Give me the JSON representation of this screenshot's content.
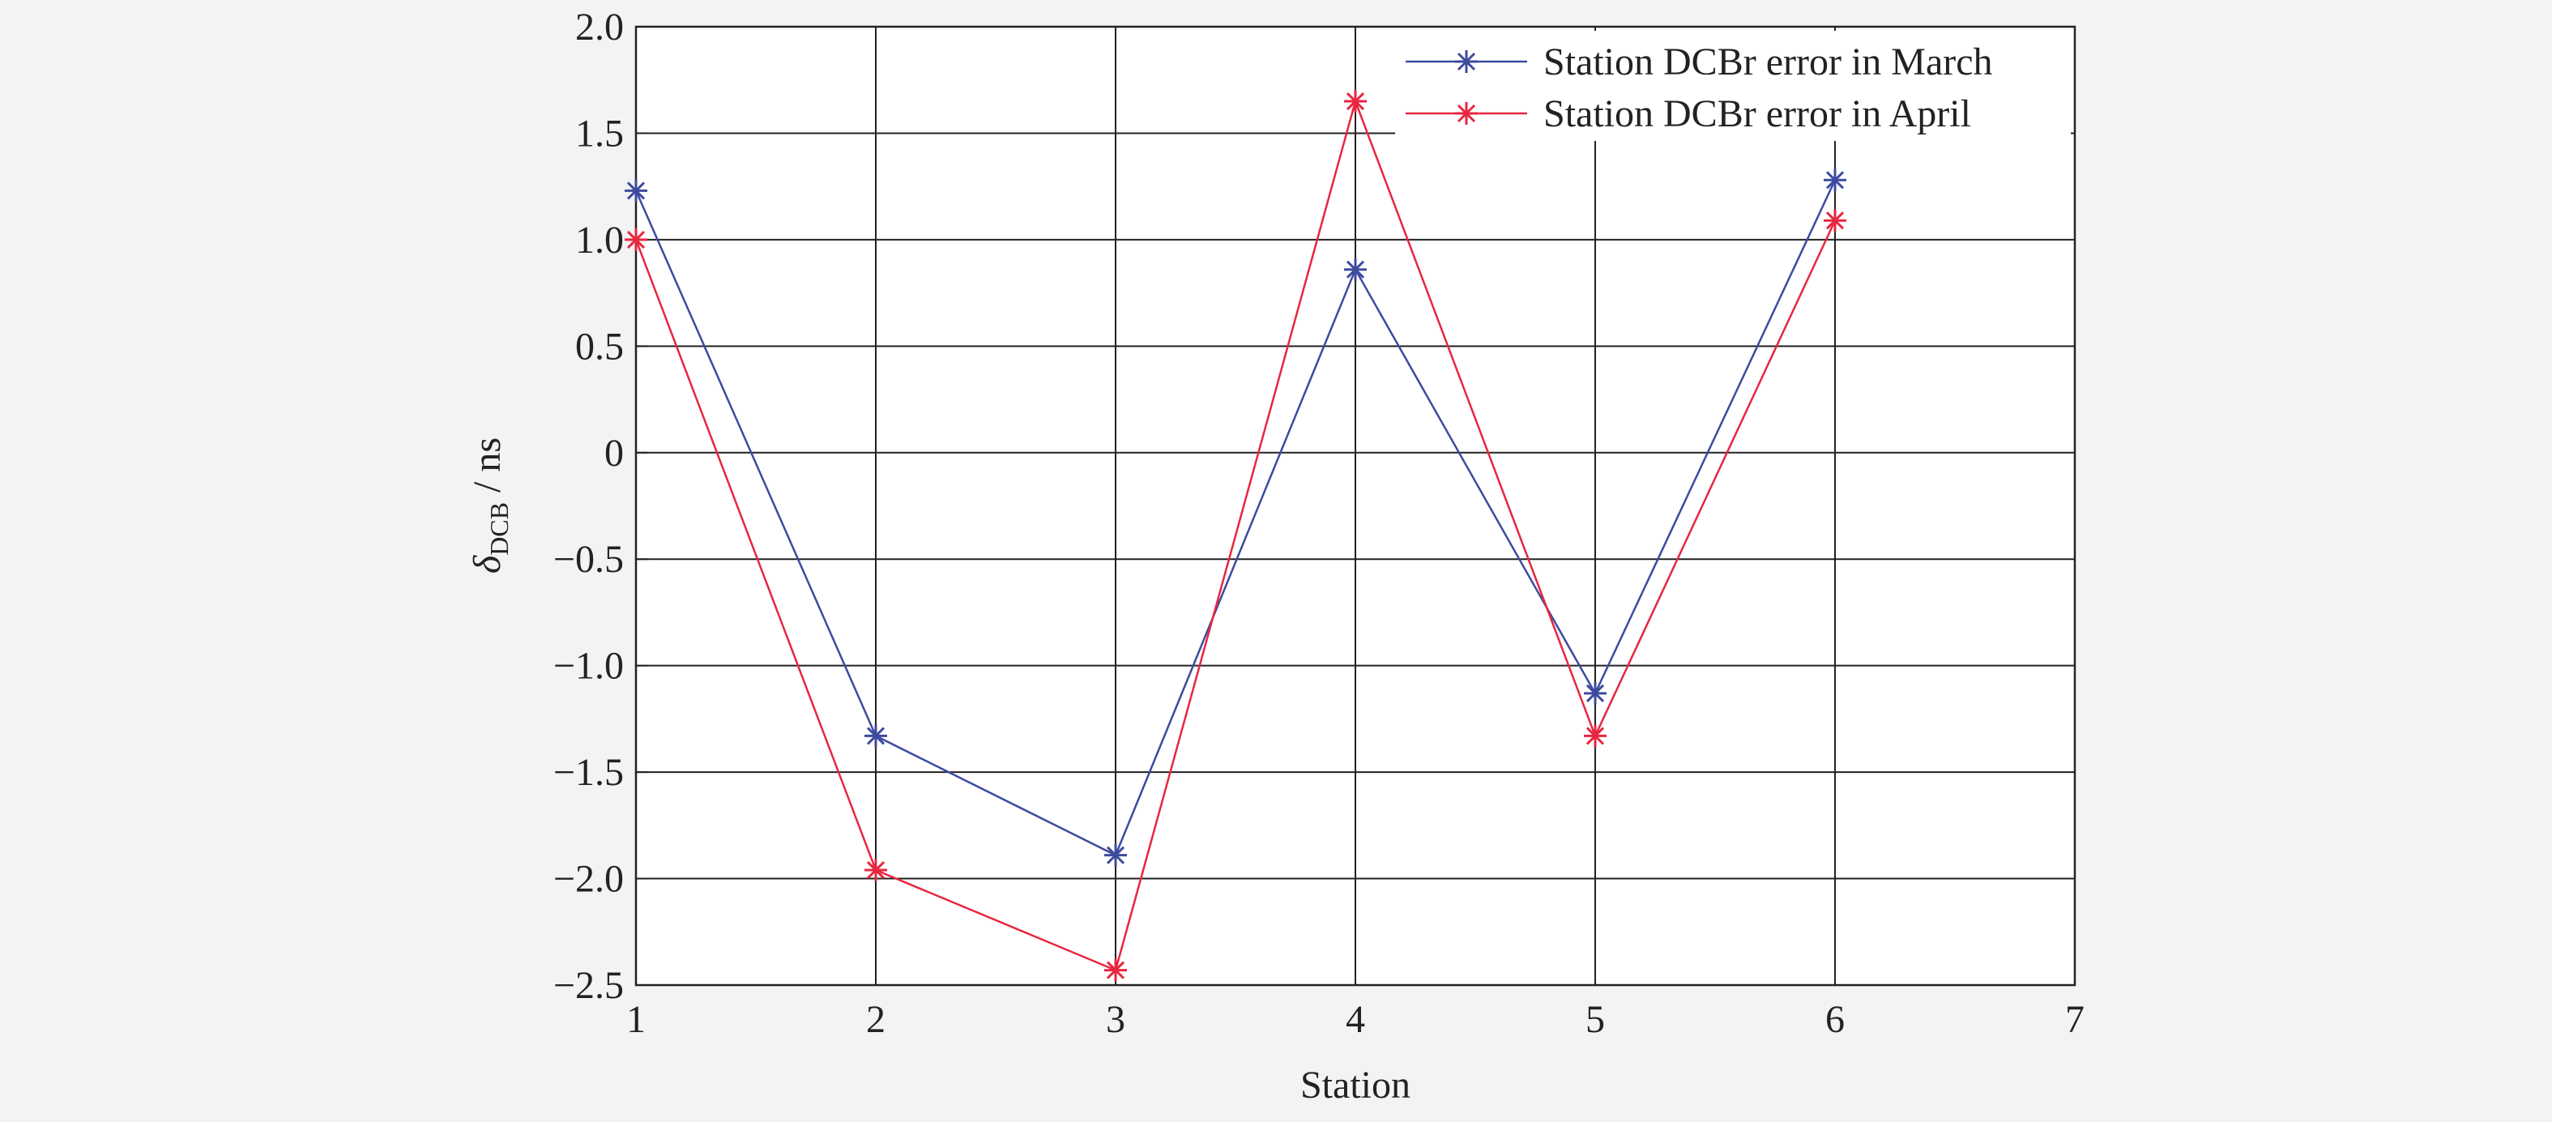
{
  "chart_data": {
    "type": "line",
    "title": "",
    "xlabel": "Station",
    "ylabel_symbol": "δ",
    "ylabel_subscript": "DCB",
    "ylabel_unit": " / ns",
    "xlim": [
      1,
      7
    ],
    "ylim": [
      -2.5,
      2.0
    ],
    "xticks": [
      1,
      2,
      3,
      4,
      5,
      6,
      7
    ],
    "xtick_labels": [
      "1",
      "2",
      "3",
      "4",
      "5",
      "6",
      "7"
    ],
    "yticks": [
      2.0,
      1.5,
      1.0,
      0.5,
      0,
      -0.5,
      -1.0,
      -1.5,
      -2.0,
      -2.5
    ],
    "ytick_labels": [
      "2.0",
      "1.5",
      "1.0",
      "0.5",
      "0",
      "−0.5",
      "−1.0",
      "−1.5",
      "−2.0",
      "−2.5"
    ],
    "grid": true,
    "legend_position": "top-right",
    "x": [
      1,
      2,
      3,
      4,
      5,
      6
    ],
    "series": [
      {
        "name": "Station DCBr error in March",
        "color": "#3d4b9e",
        "marker": "asterisk",
        "values": [
          1.23,
          -1.33,
          -1.89,
          0.86,
          -1.13,
          1.28
        ]
      },
      {
        "name": "Station DCBr error in April",
        "color": "#e8263f",
        "marker": "asterisk",
        "values": [
          1.0,
          -1.96,
          -2.43,
          1.65,
          -1.33,
          1.09
        ]
      }
    ]
  }
}
